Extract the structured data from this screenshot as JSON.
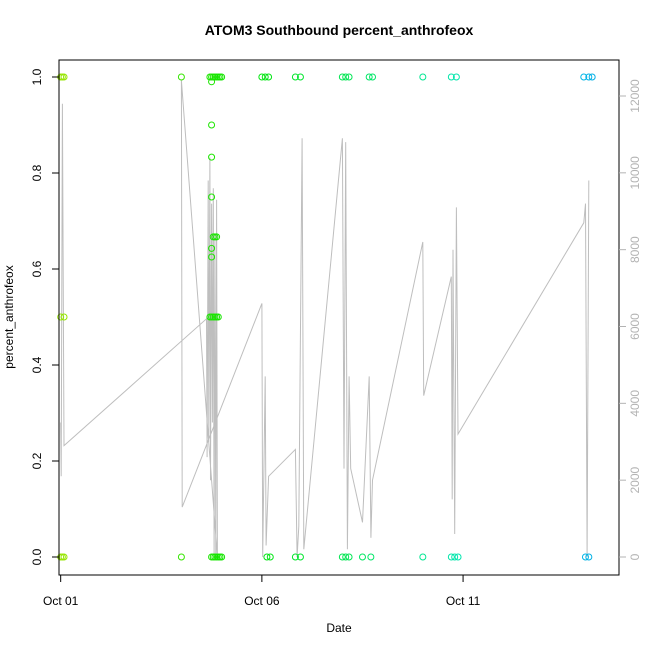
{
  "chart_data": {
    "type": "scatter",
    "title": "ATOM3 Southbound percent_anthrofeox",
    "xlabel": "Date",
    "ylabel": "percent_anthrofeox",
    "x_tick_labels": [
      "Oct 01",
      "Oct 06",
      "Oct 11"
    ],
    "x_ticks": [
      "2014-10-01",
      "2014-10-06",
      "2014-10-11"
    ],
    "xlim": [
      "2014-09-30T23:00",
      "2014-10-14T21:00"
    ],
    "y_ticks": [
      "0.0",
      "0.2",
      "0.4",
      "0.6",
      "0.8",
      "1.0"
    ],
    "ylim": [
      0,
      1
    ],
    "y2_ticks": [
      "0",
      "2000",
      "4000",
      "6000",
      "8000",
      "10000",
      "12000"
    ],
    "y2lim": [
      0,
      12500
    ],
    "point_color_scale": "rainbow, green (early) to blue (late)",
    "line_color": "#bebebe",
    "point_symbol": "open-circle",
    "points": [
      {
        "t": "2014-10-01T00:00",
        "y": 1.0
      },
      {
        "t": "2014-10-01T01:00",
        "y": 1.0
      },
      {
        "t": "2014-10-01T02:00",
        "y": 1.0
      },
      {
        "t": "2014-10-01T00:00",
        "y": 0.5
      },
      {
        "t": "2014-10-01T02:00",
        "y": 0.5
      },
      {
        "t": "2014-10-01T00:00",
        "y": 0.0
      },
      {
        "t": "2014-10-01T01:00",
        "y": 0.0
      },
      {
        "t": "2014-10-01T02:00",
        "y": 0.0
      },
      {
        "t": "2014-10-04T00:00",
        "y": 1.0
      },
      {
        "t": "2014-10-04T00:00",
        "y": 0.0
      },
      {
        "t": "2014-10-04T17:00",
        "y": 1.0
      },
      {
        "t": "2014-10-04T18:00",
        "y": 1.0
      },
      {
        "t": "2014-10-04T19:00",
        "y": 1.0
      },
      {
        "t": "2014-10-04T20:00",
        "y": 1.0
      },
      {
        "t": "2014-10-04T21:00",
        "y": 1.0
      },
      {
        "t": "2014-10-04T22:00",
        "y": 1.0
      },
      {
        "t": "2014-10-04T23:00",
        "y": 1.0
      },
      {
        "t": "2014-10-05T00:00",
        "y": 1.0
      },
      {
        "t": "2014-10-04T18:00",
        "y": 0.99
      },
      {
        "t": "2014-10-04T18:00",
        "y": 0.9
      },
      {
        "t": "2014-10-04T18:00",
        "y": 0.833
      },
      {
        "t": "2014-10-04T18:00",
        "y": 0.75
      },
      {
        "t": "2014-10-04T19:00",
        "y": 0.667
      },
      {
        "t": "2014-10-04T20:00",
        "y": 0.667
      },
      {
        "t": "2014-10-04T21:00",
        "y": 0.667
      },
      {
        "t": "2014-10-04T18:00",
        "y": 0.643
      },
      {
        "t": "2014-10-04T18:00",
        "y": 0.625
      },
      {
        "t": "2014-10-04T17:00",
        "y": 0.5
      },
      {
        "t": "2014-10-04T18:00",
        "y": 0.5
      },
      {
        "t": "2014-10-04T19:00",
        "y": 0.5
      },
      {
        "t": "2014-10-04T20:00",
        "y": 0.5
      },
      {
        "t": "2014-10-04T21:00",
        "y": 0.5
      },
      {
        "t": "2014-10-04T22:00",
        "y": 0.5
      },
      {
        "t": "2014-10-04T18:00",
        "y": 0.0
      },
      {
        "t": "2014-10-04T19:00",
        "y": 0.0
      },
      {
        "t": "2014-10-04T20:00",
        "y": 0.0
      },
      {
        "t": "2014-10-04T21:00",
        "y": 0.0
      },
      {
        "t": "2014-10-04T22:00",
        "y": 0.0
      },
      {
        "t": "2014-10-04T23:00",
        "y": 0.0
      },
      {
        "t": "2014-10-05T00:00",
        "y": 0.0
      },
      {
        "t": "2014-10-06T00:00",
        "y": 1.0
      },
      {
        "t": "2014-10-06T02:00",
        "y": 1.0
      },
      {
        "t": "2014-10-06T04:00",
        "y": 1.0
      },
      {
        "t": "2014-10-06T03:00",
        "y": 0.0
      },
      {
        "t": "2014-10-06T05:00",
        "y": 0.0
      },
      {
        "t": "2014-10-06T20:00",
        "y": 1.0
      },
      {
        "t": "2014-10-06T23:00",
        "y": 1.0
      },
      {
        "t": "2014-10-06T20:00",
        "y": 0.0
      },
      {
        "t": "2014-10-06T23:00",
        "y": 0.0
      },
      {
        "t": "2014-10-08T00:00",
        "y": 1.0
      },
      {
        "t": "2014-10-08T02:00",
        "y": 1.0
      },
      {
        "t": "2014-10-08T04:00",
        "y": 1.0
      },
      {
        "t": "2014-10-08T00:00",
        "y": 0.0
      },
      {
        "t": "2014-10-08T02:00",
        "y": 0.0
      },
      {
        "t": "2014-10-08T04:00",
        "y": 0.0
      },
      {
        "t": "2014-10-08T16:00",
        "y": 1.0
      },
      {
        "t": "2014-10-08T18:00",
        "y": 1.0
      },
      {
        "t": "2014-10-08T12:00",
        "y": 0.0
      },
      {
        "t": "2014-10-08T17:00",
        "y": 0.0
      },
      {
        "t": "2014-10-10T00:00",
        "y": 1.0
      },
      {
        "t": "2014-10-10T00:00",
        "y": 0.0
      },
      {
        "t": "2014-10-10T17:00",
        "y": 1.0
      },
      {
        "t": "2014-10-10T20:00",
        "y": 1.0
      },
      {
        "t": "2014-10-10T17:00",
        "y": 0.0
      },
      {
        "t": "2014-10-10T19:00",
        "y": 0.0
      },
      {
        "t": "2014-10-10T21:00",
        "y": 0.0
      },
      {
        "t": "2014-10-14T00:00",
        "y": 1.0
      },
      {
        "t": "2014-10-14T03:00",
        "y": 1.0
      },
      {
        "t": "2014-10-14T05:00",
        "y": 1.0
      },
      {
        "t": "2014-10-14T01:00",
        "y": 0.0
      },
      {
        "t": "2014-10-14T03:00",
        "y": 0.0
      }
    ],
    "secondary_line": [
      {
        "t": "2014-10-01T00:00",
        "v": 3500
      },
      {
        "t": "2014-10-01T00:20",
        "v": 2100
      },
      {
        "t": "2014-10-01T01:00",
        "v": 11800
      },
      {
        "t": "2014-10-01T02:00",
        "v": 2900
      },
      {
        "t": "2014-10-04T15:00",
        "v": 6200
      },
      {
        "t": "2014-10-04T15:20",
        "v": 2600
      },
      {
        "t": "2014-10-04T16:00",
        "v": 9800
      },
      {
        "t": "2014-10-04T16:20",
        "v": 3000
      },
      {
        "t": "2014-10-04T17:00",
        "v": 10400
      },
      {
        "t": "2014-10-04T17:20",
        "v": 2000
      },
      {
        "t": "2014-10-04T18:00",
        "v": 9200
      },
      {
        "t": "2014-10-04T18:30",
        "v": 3500
      },
      {
        "t": "2014-10-04T19:00",
        "v": 9600
      },
      {
        "t": "2014-10-04T19:30",
        "v": 0
      },
      {
        "t": "2014-10-04T20:00",
        "v": 8400
      },
      {
        "t": "2014-10-04T20:30",
        "v": 0
      },
      {
        "t": "2014-10-04T21:00",
        "v": 9300
      },
      {
        "t": "2014-10-04T21:30",
        "v": 0
      },
      {
        "t": "2014-10-04T00:00",
        "v": 12400
      },
      {
        "t": "2014-10-04T00:30",
        "v": 1300
      },
      {
        "t": "2014-10-06T00:00",
        "v": 6600
      },
      {
        "t": "2014-10-06T00:30",
        "v": 0
      },
      {
        "t": "2014-10-06T02:00",
        "v": 4700
      },
      {
        "t": "2014-10-06T02:30",
        "v": 300
      },
      {
        "t": "2014-10-06T04:00",
        "v": 2100
      },
      {
        "t": "2014-10-06T20:00",
        "v": 2800
      },
      {
        "t": "2014-10-06T21:00",
        "v": 0
      },
      {
        "t": "2014-10-06T22:00",
        "v": 800
      },
      {
        "t": "2014-10-07T00:00",
        "v": 10900
      },
      {
        "t": "2014-10-07T01:00",
        "v": 200
      },
      {
        "t": "2014-10-08T00:00",
        "v": 10900
      },
      {
        "t": "2014-10-08T01:00",
        "v": 2300
      },
      {
        "t": "2014-10-08T02:00",
        "v": 10800
      },
      {
        "t": "2014-10-08T03:00",
        "v": 200
      },
      {
        "t": "2014-10-08T04:00",
        "v": 4700
      },
      {
        "t": "2014-10-08T05:00",
        "v": 2300
      },
      {
        "t": "2014-10-08T12:00",
        "v": 900
      },
      {
        "t": "2014-10-08T16:00",
        "v": 4700
      },
      {
        "t": "2014-10-08T17:00",
        "v": 500
      },
      {
        "t": "2014-10-08T18:00",
        "v": 2000
      },
      {
        "t": "2014-10-10T00:00",
        "v": 8200
      },
      {
        "t": "2014-10-10T00:30",
        "v": 4200
      },
      {
        "t": "2014-10-10T17:00",
        "v": 7300
      },
      {
        "t": "2014-10-10T17:30",
        "v": 1500
      },
      {
        "t": "2014-10-10T18:00",
        "v": 8000
      },
      {
        "t": "2014-10-10T19:00",
        "v": 600
      },
      {
        "t": "2014-10-10T20:00",
        "v": 9100
      },
      {
        "t": "2014-10-10T21:00",
        "v": 3200
      },
      {
        "t": "2014-10-14T00:00",
        "v": 8700
      },
      {
        "t": "2014-10-14T01:00",
        "v": 9200
      },
      {
        "t": "2014-10-14T02:00",
        "v": 0
      },
      {
        "t": "2014-10-14T03:00",
        "v": 9800
      }
    ]
  }
}
